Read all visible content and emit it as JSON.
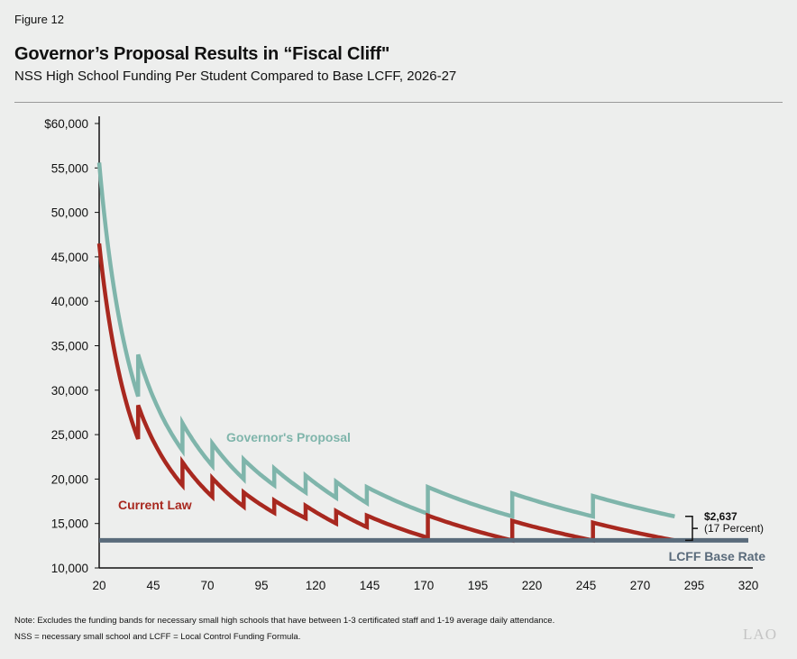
{
  "figure_label": "Figure 12",
  "footer": {
    "note": "Note: Excludes the funding bands for necessary small high schools that have between 1-3 certificated staff and 1-19 average daily attendance.",
    "definitions": "NSS = necessary small school and LCFF =  Local Control Funding Formula.",
    "logo": "LAO"
  },
  "chart_data": {
    "type": "line",
    "title": "Governor’s Proposal Results in “Fiscal Cliff\"",
    "subtitle": "NSS High School Funding Per Student Compared to Base LCFF, 2026-27",
    "xlabel": "",
    "ylabel": "",
    "xlim": [
      20,
      320
    ],
    "ylim": [
      10000,
      60000
    ],
    "x_ticks": [
      "20",
      "45",
      "70",
      "95",
      "120",
      "145",
      "170",
      "195",
      "220",
      "245",
      "270",
      "295",
      "320"
    ],
    "y_ticks": [
      "10,000",
      "15,000",
      "20,000",
      "25,000",
      "30,000",
      "35,000",
      "40,000",
      "45,000",
      "50,000",
      "55,000",
      "$60,000"
    ],
    "grid": false,
    "series": [
      {
        "name": "Governor's Proposal",
        "color": "#7fb5ab",
        "points": [
          [
            20,
            55600
          ],
          [
            38,
            29300
          ],
          [
            38,
            34000
          ],
          [
            58.5,
            23200
          ],
          [
            58.5,
            26300
          ],
          [
            72.3,
            21500
          ],
          [
            72.3,
            24000
          ],
          [
            86.8,
            20000
          ],
          [
            86.8,
            22200
          ],
          [
            100.9,
            19300
          ],
          [
            100.9,
            21200
          ],
          [
            115.4,
            18500
          ],
          [
            115.4,
            20400
          ],
          [
            129.5,
            17900
          ],
          [
            129.5,
            19700
          ],
          [
            143.7,
            17300
          ],
          [
            143.7,
            19100
          ],
          [
            171.9,
            16100
          ],
          [
            171.9,
            19100
          ],
          [
            210.9,
            15800
          ],
          [
            210.9,
            18400
          ],
          [
            248.2,
            15800
          ],
          [
            248.2,
            18100
          ],
          [
            286,
            15800
          ]
        ]
      },
      {
        "name": "Current Law",
        "color": "#a8281f",
        "points": [
          [
            20,
            46500
          ],
          [
            38,
            24500
          ],
          [
            38,
            28300
          ],
          [
            58.5,
            19300
          ],
          [
            58.5,
            21900
          ],
          [
            72.3,
            18000
          ],
          [
            72.3,
            20100
          ],
          [
            86.8,
            16900
          ],
          [
            86.8,
            18500
          ],
          [
            100.9,
            16200
          ],
          [
            100.9,
            17600
          ],
          [
            115.4,
            15600
          ],
          [
            115.4,
            17000
          ],
          [
            129.5,
            15000
          ],
          [
            129.5,
            16400
          ],
          [
            143.7,
            14600
          ],
          [
            143.7,
            15900
          ],
          [
            171.9,
            13400
          ],
          [
            171.9,
            15900
          ],
          [
            210.9,
            13100
          ],
          [
            210.9,
            15300
          ],
          [
            248.2,
            13100
          ],
          [
            248.2,
            15100
          ],
          [
            286,
            13100
          ]
        ]
      },
      {
        "name": "LCFF Base Rate",
        "color": "#5a6b7b",
        "points": [
          [
            20,
            13100
          ],
          [
            320,
            13100
          ]
        ]
      }
    ],
    "annotation": {
      "amount": "$2,637",
      "percent": "(17 Percent)"
    }
  }
}
